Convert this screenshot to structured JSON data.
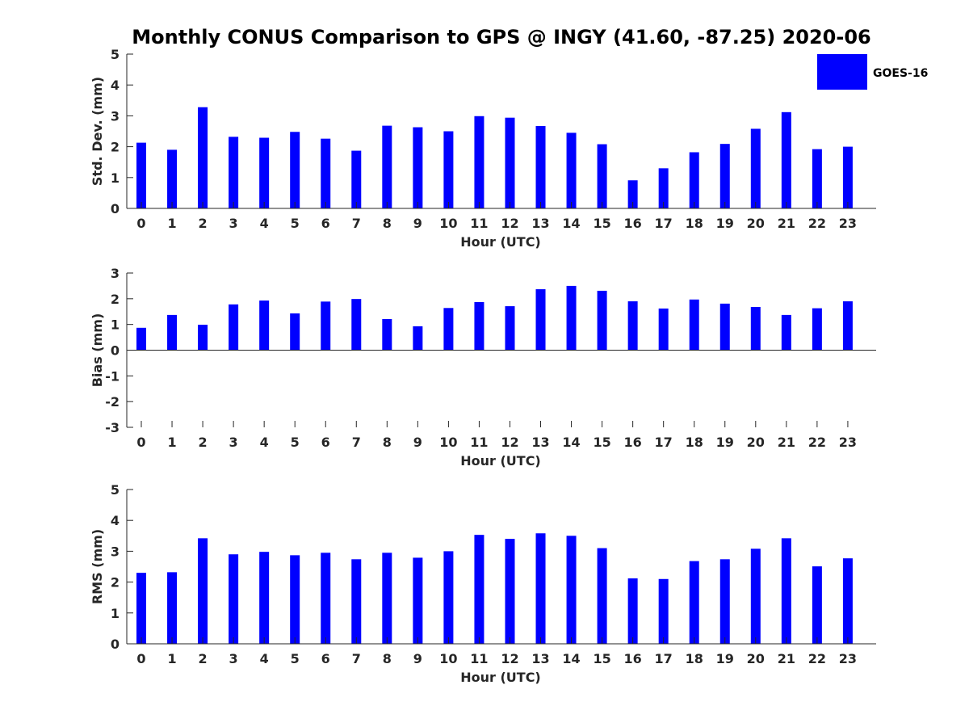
{
  "title": "Monthly CONUS Comparison to GPS @ INGY (41.60, -87.25) 2020-06",
  "legend": {
    "label": "GOES-16",
    "color": "#0000ff",
    "placement": "top-right"
  },
  "chart_data": [
    {
      "type": "bar",
      "xlabel": "Hour (UTC)",
      "ylabel": "Std. Dev. (mm)",
      "ylim": [
        0,
        5
      ],
      "yticks": [
        "0",
        "1",
        "2",
        "3",
        "4",
        "5"
      ],
      "categories": [
        "0",
        "1",
        "2",
        "3",
        "4",
        "5",
        "6",
        "7",
        "8",
        "9",
        "10",
        "11",
        "12",
        "13",
        "14",
        "15",
        "16",
        "17",
        "18",
        "19",
        "20",
        "21",
        "22",
        "23"
      ],
      "series": [
        {
          "name": "GOES-16",
          "color": "#0000ff",
          "values": [
            2.13,
            1.9,
            3.28,
            2.32,
            2.29,
            2.48,
            2.26,
            1.87,
            2.68,
            2.63,
            2.5,
            2.99,
            2.94,
            2.67,
            2.45,
            2.08,
            0.91,
            1.3,
            1.82,
            2.09,
            2.58,
            3.12,
            1.92,
            2.0
          ]
        }
      ],
      "grid": false
    },
    {
      "type": "bar",
      "xlabel": "Hour (UTC)",
      "ylabel": "Bias (mm)",
      "ylim": [
        -3,
        3
      ],
      "yticks": [
        "-3",
        "-2",
        "-1",
        "0",
        "1",
        "2",
        "3"
      ],
      "categories": [
        "0",
        "1",
        "2",
        "3",
        "4",
        "5",
        "6",
        "7",
        "8",
        "9",
        "10",
        "11",
        "12",
        "13",
        "14",
        "15",
        "16",
        "17",
        "18",
        "19",
        "20",
        "21",
        "22",
        "23"
      ],
      "series": [
        {
          "name": "GOES-16",
          "color": "#0000ff",
          "values": [
            0.87,
            1.37,
            0.99,
            1.78,
            1.93,
            1.43,
            1.89,
            1.99,
            1.21,
            0.93,
            1.64,
            1.87,
            1.71,
            2.37,
            2.5,
            2.31,
            1.9,
            1.62,
            1.97,
            1.81,
            1.68,
            1.37,
            1.63,
            1.9
          ]
        }
      ],
      "grid": false
    },
    {
      "type": "bar",
      "xlabel": "Hour (UTC)",
      "ylabel": "RMS (mm)",
      "ylim": [
        0,
        5
      ],
      "yticks": [
        "0",
        "1",
        "2",
        "3",
        "4",
        "5"
      ],
      "categories": [
        "0",
        "1",
        "2",
        "3",
        "4",
        "5",
        "6",
        "7",
        "8",
        "9",
        "10",
        "11",
        "12",
        "13",
        "14",
        "15",
        "16",
        "17",
        "18",
        "19",
        "20",
        "21",
        "22",
        "23"
      ],
      "series": [
        {
          "name": "GOES-16",
          "color": "#0000ff",
          "values": [
            2.3,
            2.32,
            3.42,
            2.9,
            2.98,
            2.87,
            2.95,
            2.74,
            2.95,
            2.79,
            3.0,
            3.53,
            3.4,
            3.58,
            3.5,
            3.1,
            2.12,
            2.1,
            2.68,
            2.74,
            3.08,
            3.42,
            2.51,
            2.77
          ]
        }
      ],
      "grid": false
    }
  ]
}
